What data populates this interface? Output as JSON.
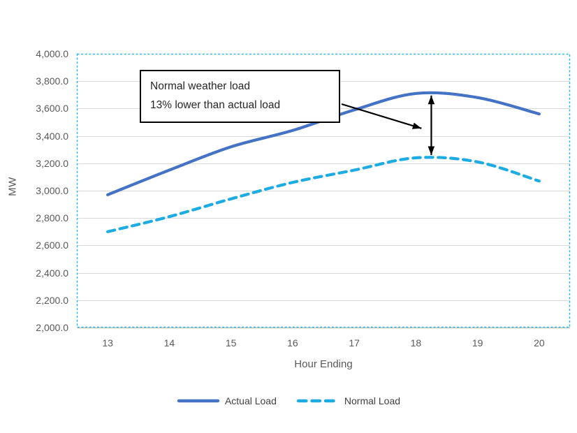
{
  "chart_data": {
    "type": "line",
    "title": "",
    "xlabel": "Hour Ending",
    "ylabel": "MW",
    "categories": [
      "13",
      "14",
      "15",
      "16",
      "17",
      "18",
      "19",
      "20"
    ],
    "series": [
      {
        "name": "Actual Load",
        "style": "solid",
        "color": "#4472C4",
        "values": [
          2970,
          3150,
          3320,
          3440,
          3590,
          3710,
          3680,
          3560
        ]
      },
      {
        "name": "Normal Load",
        "style": "dashed",
        "color": "#1CACE3",
        "values": [
          2700,
          2810,
          2940,
          3060,
          3150,
          3240,
          3210,
          3070
        ]
      }
    ],
    "ylim": [
      2000,
      4000
    ],
    "ytick_step": 200,
    "ytick_labels": [
      "4,000.0",
      "3,800.0",
      "3,600.0",
      "3,400.0",
      "3,200.0",
      "3,000.0",
      "2,800.0",
      "2,600.0",
      "2,400.0",
      "2,200.0",
      "2,000.0"
    ],
    "grid": "horizontal",
    "legend_position": "bottom",
    "smooth_lines": true,
    "plot_border": {
      "style": "dashed",
      "color": "#2BB7EA"
    }
  },
  "annotation": {
    "line1": "Normal weather load",
    "line2": "13% lower than actual load",
    "pointer_arrow": {
      "to_hour": 18.09,
      "to_mw": 3455
    },
    "gap_arrow": {
      "at_hour": 18.25,
      "top_mw": 3695,
      "bottom_mw": 3260
    }
  },
  "colors": {
    "actual_line": "#4472C4",
    "normal_line": "#1CACE3",
    "plot_border": "#2BB7EA",
    "gridline": "#D9D9D9",
    "axis_line": "#BFBFBF",
    "tick_text": "#595959",
    "legend_text": "#404040",
    "arrow": "#000000"
  }
}
